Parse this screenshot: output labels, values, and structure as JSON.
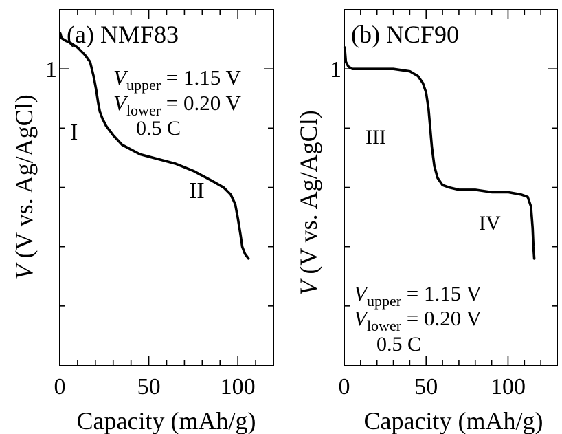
{
  "chart_data": [
    {
      "type": "line",
      "title": "(a) NMF83",
      "xlabel": "Capacity (mAh/g)",
      "ylabel_italic": "V",
      "ylabel_rest": "(V vs. Ag/AgCl)",
      "xlim": [
        0,
        120
      ],
      "ylim": [
        -0.25,
        1.25
      ],
      "x_ticks": [
        0,
        50,
        100
      ],
      "y_ticks": [
        1
      ],
      "grid": false,
      "annotations": {
        "v_upper_sym": "V",
        "v_upper_sub": "upper",
        "v_upper_val": " = 1.15 V",
        "v_lower_sym": "V",
        "v_lower_sub": "lower",
        "v_lower_val": " = 0.20 V",
        "rate": "0.5 C",
        "region1": "I",
        "region2": "II"
      },
      "series": [
        {
          "x": [
            0.3,
            1,
            3,
            6,
            10,
            14,
            17,
            19,
            20.5,
            21.5,
            22.5,
            24,
            26,
            30,
            35,
            40,
            45,
            55,
            65,
            75,
            85,
            92,
            96,
            98.5,
            100,
            101.5,
            102.5,
            104,
            106
          ],
          "y": [
            1.15,
            1.13,
            1.12,
            1.11,
            1.09,
            1.06,
            1.03,
            0.97,
            0.91,
            0.86,
            0.82,
            0.79,
            0.76,
            0.72,
            0.68,
            0.66,
            0.64,
            0.62,
            0.6,
            0.57,
            0.53,
            0.5,
            0.47,
            0.43,
            0.37,
            0.3,
            0.25,
            0.22,
            0.2
          ]
        }
      ]
    },
    {
      "type": "line",
      "title": "(b) NCF90",
      "xlabel": "Capacity (mAh/g)",
      "ylabel_italic": "V",
      "ylabel_rest": "(V vs. Ag/AgCl)",
      "xlim": [
        0,
        130
      ],
      "ylim": [
        -0.25,
        1.25
      ],
      "x_ticks": [
        0,
        50,
        100
      ],
      "y_ticks": [
        1
      ],
      "grid": false,
      "annotations": {
        "v_upper_sym": "V",
        "v_upper_sub": "upper",
        "v_upper_val": " = 1.15 V",
        "v_lower_sym": "V",
        "v_lower_sub": "lower",
        "v_lower_val": " = 0.20 V",
        "rate": "0.5 C",
        "region1": "III",
        "region2": "IV"
      },
      "series": [
        {
          "x": [
            0.3,
            1,
            2.5,
            5,
            10,
            20,
            30,
            40,
            45,
            48,
            50,
            51.5,
            52.5,
            53.5,
            55,
            57,
            60,
            64,
            70,
            80,
            90,
            100,
            108,
            112,
            114,
            115,
            115.5,
            116
          ],
          "y": [
            1.09,
            1.03,
            1.01,
            1.0,
            1.0,
            1.0,
            1.0,
            0.99,
            0.97,
            0.94,
            0.9,
            0.83,
            0.75,
            0.67,
            0.59,
            0.54,
            0.51,
            0.5,
            0.49,
            0.49,
            0.48,
            0.48,
            0.47,
            0.46,
            0.42,
            0.33,
            0.25,
            0.2
          ]
        }
      ]
    }
  ]
}
